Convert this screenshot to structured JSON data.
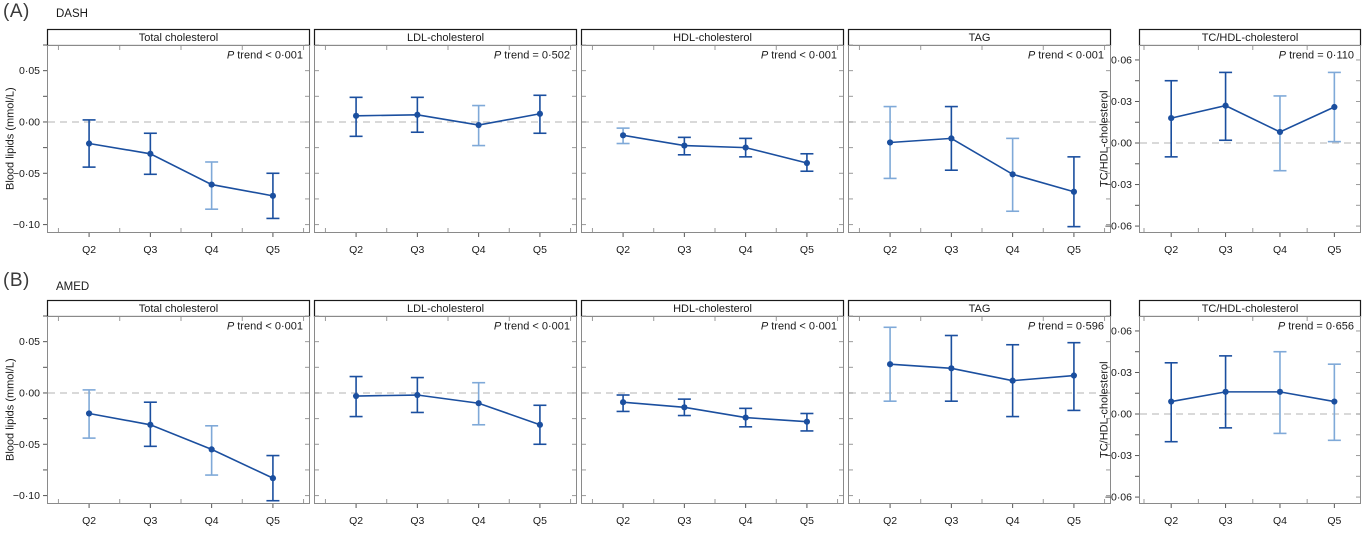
{
  "figure": {
    "rows": [
      {
        "corner_label": "(A)",
        "diet_label": "DASH"
      },
      {
        "corner_label": "(B)",
        "diet_label": "AMED"
      }
    ]
  },
  "axes": {
    "blood_lipids": {
      "label": "Blood lipids (mmol/L)",
      "tick_labels": [
        "0·05",
        "0·00",
        "−0·05",
        "−0·10"
      ],
      "tick_values": [
        0.05,
        0.0,
        -0.05,
        -0.1
      ],
      "minor_tick_values": [
        0.075,
        0.025,
        -0.025,
        -0.075
      ],
      "ylim": [
        0.075,
        -0.1082
      ]
    },
    "tc_hdl": {
      "label": "TC/HDL-cholesterol",
      "tick_labels": [
        "0·06",
        "0·03",
        "0·00",
        "−0·03",
        "−0·06"
      ],
      "tick_values": [
        0.06,
        0.03,
        0.0,
        -0.03,
        -0.06
      ],
      "minor_tick_values": [
        0.045,
        0.015,
        -0.015,
        -0.045
      ],
      "ylim": [
        0.0708,
        -0.065
      ]
    }
  },
  "colors": {
    "point": "#1b4f9f",
    "trend_line": "#1b4f9f",
    "ci_dark": "#1b4f9f",
    "ci_light": "#7fa9d8",
    "zero_line": "#c2c2c2",
    "panel_border": "#8a8a8a",
    "strip_border": "#1a1a1a",
    "tick": "#555555",
    "inner_tick": "#9a9a9a",
    "text": "#1a1a1a"
  },
  "chart_data": [
    {
      "row": "A",
      "diet": "DASH",
      "position": 1,
      "type": "line",
      "title": "Total cholesterol",
      "p_trend_label": "P trend < 0·001",
      "y_axis": "blood_lipids",
      "x_categories": [
        "Q2",
        "Q3",
        "Q4",
        "Q5"
      ],
      "points": [
        {
          "x": "Q2",
          "y": -0.021,
          "ci": [
            -0.044,
            0.002
          ],
          "ci_color": "dark"
        },
        {
          "x": "Q3",
          "y": -0.031,
          "ci": [
            -0.051,
            -0.011
          ],
          "ci_color": "dark"
        },
        {
          "x": "Q4",
          "y": -0.061,
          "ci": [
            -0.085,
            -0.039
          ],
          "ci_color": "light"
        },
        {
          "x": "Q5",
          "y": -0.072,
          "ci": [
            -0.094,
            -0.05
          ],
          "ci_color": "dark"
        }
      ]
    },
    {
      "row": "A",
      "diet": "DASH",
      "position": 2,
      "type": "line",
      "title": "LDL-cholesterol",
      "p_trend_label": "P trend = 0·502",
      "y_axis": "blood_lipids",
      "x_categories": [
        "Q2",
        "Q3",
        "Q4",
        "Q5"
      ],
      "points": [
        {
          "x": "Q2",
          "y": 0.006,
          "ci": [
            -0.014,
            0.024
          ],
          "ci_color": "dark"
        },
        {
          "x": "Q3",
          "y": 0.007,
          "ci": [
            -0.01,
            0.024
          ],
          "ci_color": "dark"
        },
        {
          "x": "Q4",
          "y": -0.003,
          "ci": [
            -0.023,
            0.016
          ],
          "ci_color": "light"
        },
        {
          "x": "Q5",
          "y": 0.008,
          "ci": [
            -0.011,
            0.026
          ],
          "ci_color": "dark"
        }
      ]
    },
    {
      "row": "A",
      "diet": "DASH",
      "position": 3,
      "type": "line",
      "title": "HDL-cholesterol",
      "p_trend_label": "P trend < 0·001",
      "y_axis": "blood_lipids",
      "x_categories": [
        "Q2",
        "Q3",
        "Q4",
        "Q5"
      ],
      "points": [
        {
          "x": "Q2",
          "y": -0.013,
          "ci": [
            -0.021,
            -0.006
          ],
          "ci_color": "light"
        },
        {
          "x": "Q3",
          "y": -0.023,
          "ci": [
            -0.032,
            -0.015
          ],
          "ci_color": "dark"
        },
        {
          "x": "Q4",
          "y": -0.025,
          "ci": [
            -0.034,
            -0.016
          ],
          "ci_color": "dark"
        },
        {
          "x": "Q5",
          "y": -0.04,
          "ci": [
            -0.048,
            -0.031
          ],
          "ci_color": "dark"
        }
      ]
    },
    {
      "row": "A",
      "diet": "DASH",
      "position": 4,
      "type": "line",
      "title": "TAG",
      "p_trend_label": "P trend < 0·001",
      "y_axis": "blood_lipids",
      "x_categories": [
        "Q2",
        "Q3",
        "Q4",
        "Q5"
      ],
      "points": [
        {
          "x": "Q2",
          "y": -0.02,
          "ci": [
            -0.055,
            0.015
          ],
          "ci_color": "light"
        },
        {
          "x": "Q3",
          "y": -0.016,
          "ci": [
            -0.047,
            0.015
          ],
          "ci_color": "dark"
        },
        {
          "x": "Q4",
          "y": -0.051,
          "ci": [
            -0.087,
            -0.016
          ],
          "ci_color": "light"
        },
        {
          "x": "Q5",
          "y": -0.068,
          "ci": [
            -0.102,
            -0.034
          ],
          "ci_color": "dark"
        }
      ]
    },
    {
      "row": "A",
      "diet": "DASH",
      "position": 5,
      "type": "line",
      "title": "TC/HDL-cholesterol",
      "p_trend_label": "P trend = 0·110",
      "y_axis": "tc_hdl",
      "x_categories": [
        "Q2",
        "Q3",
        "Q4",
        "Q5"
      ],
      "points": [
        {
          "x": "Q2",
          "y": 0.018,
          "ci": [
            -0.01,
            0.045
          ],
          "ci_color": "dark"
        },
        {
          "x": "Q3",
          "y": 0.027,
          "ci": [
            0.002,
            0.051
          ],
          "ci_color": "dark"
        },
        {
          "x": "Q4",
          "y": 0.008,
          "ci": [
            -0.02,
            0.034
          ],
          "ci_color": "light"
        },
        {
          "x": "Q5",
          "y": 0.026,
          "ci": [
            0.001,
            0.051
          ],
          "ci_color": "light"
        }
      ]
    },
    {
      "row": "B",
      "diet": "AMED",
      "position": 1,
      "type": "line",
      "title": "Total cholesterol",
      "p_trend_label": "P trend < 0·001",
      "y_axis": "blood_lipids",
      "x_categories": [
        "Q2",
        "Q3",
        "Q4",
        "Q5"
      ],
      "points": [
        {
          "x": "Q2",
          "y": -0.02,
          "ci": [
            -0.044,
            0.003
          ],
          "ci_color": "light"
        },
        {
          "x": "Q3",
          "y": -0.031,
          "ci": [
            -0.052,
            -0.009
          ],
          "ci_color": "dark"
        },
        {
          "x": "Q4",
          "y": -0.055,
          "ci": [
            -0.08,
            -0.032
          ],
          "ci_color": "light"
        },
        {
          "x": "Q5",
          "y": -0.083,
          "ci": [
            -0.105,
            -0.061
          ],
          "ci_color": "dark"
        }
      ]
    },
    {
      "row": "B",
      "diet": "AMED",
      "position": 2,
      "type": "line",
      "title": "LDL-cholesterol",
      "p_trend_label": "P trend < 0·001",
      "y_axis": "blood_lipids",
      "x_categories": [
        "Q2",
        "Q3",
        "Q4",
        "Q5"
      ],
      "points": [
        {
          "x": "Q2",
          "y": -0.003,
          "ci": [
            -0.023,
            0.016
          ],
          "ci_color": "dark"
        },
        {
          "x": "Q3",
          "y": -0.002,
          "ci": [
            -0.019,
            0.015
          ],
          "ci_color": "dark"
        },
        {
          "x": "Q4",
          "y": -0.01,
          "ci": [
            -0.031,
            0.01
          ],
          "ci_color": "light"
        },
        {
          "x": "Q5",
          "y": -0.031,
          "ci": [
            -0.05,
            -0.012
          ],
          "ci_color": "dark"
        }
      ]
    },
    {
      "row": "B",
      "diet": "AMED",
      "position": 3,
      "type": "line",
      "title": "HDL-cholesterol",
      "p_trend_label": "P trend < 0·001",
      "y_axis": "blood_lipids",
      "x_categories": [
        "Q2",
        "Q3",
        "Q4",
        "Q5"
      ],
      "points": [
        {
          "x": "Q2",
          "y": -0.009,
          "ci": [
            -0.018,
            -0.002
          ],
          "ci_color": "dark"
        },
        {
          "x": "Q3",
          "y": -0.014,
          "ci": [
            -0.022,
            -0.006
          ],
          "ci_color": "dark"
        },
        {
          "x": "Q4",
          "y": -0.024,
          "ci": [
            -0.033,
            -0.015
          ],
          "ci_color": "dark"
        },
        {
          "x": "Q5",
          "y": -0.028,
          "ci": [
            -0.037,
            -0.02
          ],
          "ci_color": "dark"
        }
      ]
    },
    {
      "row": "B",
      "diet": "AMED",
      "position": 4,
      "type": "line",
      "title": "TAG",
      "p_trend_label": "P trend = 0·596",
      "y_axis": "blood_lipids",
      "x_categories": [
        "Q2",
        "Q3",
        "Q4",
        "Q5"
      ],
      "points": [
        {
          "x": "Q2",
          "y": 0.028,
          "ci": [
            -0.008,
            0.064
          ],
          "ci_color": "light"
        },
        {
          "x": "Q3",
          "y": 0.024,
          "ci": [
            -0.008,
            0.056
          ],
          "ci_color": "dark"
        },
        {
          "x": "Q4",
          "y": 0.012,
          "ci": [
            -0.023,
            0.047
          ],
          "ci_color": "dark"
        },
        {
          "x": "Q5",
          "y": 0.017,
          "ci": [
            -0.017,
            0.049
          ],
          "ci_color": "dark"
        }
      ]
    },
    {
      "row": "B",
      "diet": "AMED",
      "position": 5,
      "type": "line",
      "title": "TC/HDL-cholesterol",
      "p_trend_label": "P trend = 0·656",
      "y_axis": "tc_hdl",
      "x_categories": [
        "Q2",
        "Q3",
        "Q4",
        "Q5"
      ],
      "points": [
        {
          "x": "Q2",
          "y": 0.009,
          "ci": [
            -0.02,
            0.037
          ],
          "ci_color": "dark"
        },
        {
          "x": "Q3",
          "y": 0.016,
          "ci": [
            -0.01,
            0.042
          ],
          "ci_color": "dark"
        },
        {
          "x": "Q4",
          "y": 0.016,
          "ci": [
            -0.014,
            0.045
          ],
          "ci_color": "light"
        },
        {
          "x": "Q5",
          "y": 0.009,
          "ci": [
            -0.019,
            0.036
          ],
          "ci_color": "light"
        }
      ]
    }
  ]
}
